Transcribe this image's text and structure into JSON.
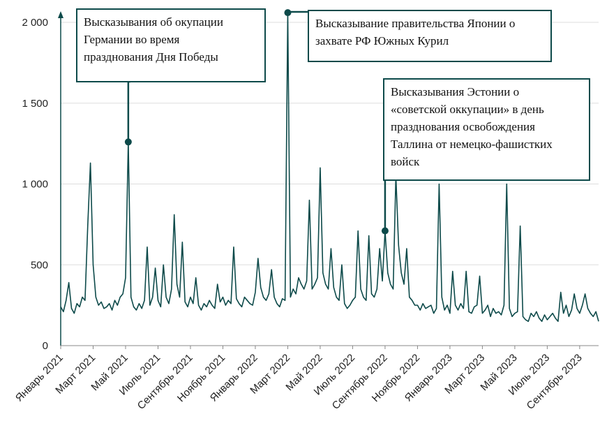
{
  "chart_data": {
    "type": "line",
    "color": "#0d4a4a",
    "xlim": [
      0,
      199
    ],
    "xticks": [
      {
        "value": 0,
        "label": "Январь 2021"
      },
      {
        "value": 12,
        "label": "Март 2021"
      },
      {
        "value": 24,
        "label": "Май 2021"
      },
      {
        "value": 36,
        "label": "Июль 2021"
      },
      {
        "value": 48,
        "label": "Сентябрь 2021"
      },
      {
        "value": 60,
        "label": "Ноябрь 2021"
      },
      {
        "value": 72,
        "label": "Январь 2022"
      },
      {
        "value": 84,
        "label": "Март 2022"
      },
      {
        "value": 96,
        "label": "Май 2022"
      },
      {
        "value": 108,
        "label": "Июль 2022"
      },
      {
        "value": 120,
        "label": "Сентябрь 2022"
      },
      {
        "value": 132,
        "label": "Ноябрь 2022"
      },
      {
        "value": 144,
        "label": "Январь 2023"
      },
      {
        "value": 156,
        "label": "Март 2023"
      },
      {
        "value": 168,
        "label": "Май 2023"
      },
      {
        "value": 180,
        "label": "Июль 2023"
      },
      {
        "value": 192,
        "label": "Сентябрь 2023"
      }
    ],
    "ylim": [
      0,
      2000
    ],
    "yticks": [
      {
        "value": 0,
        "label": "0"
      },
      {
        "value": 500,
        "label": "500"
      },
      {
        "value": 1000,
        "label": "1 000"
      },
      {
        "value": 1500,
        "label": "1 500"
      },
      {
        "value": 2000,
        "label": "2 000"
      }
    ],
    "values": [
      240,
      210,
      280,
      390,
      230,
      200,
      260,
      240,
      300,
      280,
      740,
      1130,
      500,
      300,
      250,
      270,
      230,
      240,
      260,
      220,
      280,
      250,
      300,
      320,
      420,
      1260,
      300,
      240,
      220,
      260,
      230,
      280,
      610,
      250,
      300,
      480,
      280,
      240,
      500,
      300,
      260,
      350,
      810,
      380,
      300,
      640,
      270,
      240,
      300,
      260,
      420,
      250,
      220,
      260,
      240,
      280,
      250,
      230,
      380,
      270,
      300,
      250,
      280,
      260,
      610,
      290,
      260,
      240,
      300,
      280,
      260,
      250,
      330,
      540,
      360,
      300,
      280,
      320,
      470,
      300,
      260,
      240,
      290,
      280,
      2060,
      300,
      350,
      320,
      420,
      380,
      350,
      400,
      900,
      350,
      380,
      420,
      1100,
      450,
      380,
      350,
      600,
      360,
      300,
      280,
      500,
      260,
      230,
      250,
      280,
      300,
      710,
      350,
      300,
      280,
      680,
      320,
      300,
      350,
      600,
      400,
      710,
      450,
      380,
      350,
      1050,
      620,
      450,
      380,
      600,
      300,
      280,
      250,
      250,
      220,
      260,
      230,
      240,
      250,
      200,
      230,
      1000,
      300,
      220,
      250,
      200,
      460,
      250,
      220,
      260,
      230,
      460,
      210,
      200,
      240,
      250,
      430,
      200,
      220,
      250,
      180,
      230,
      200,
      210,
      190,
      250,
      1000,
      230,
      180,
      200,
      210,
      740,
      180,
      160,
      150,
      200,
      180,
      210,
      170,
      150,
      190,
      160,
      180,
      200,
      170,
      150,
      330,
      200,
      250,
      180,
      220,
      320,
      230,
      200,
      250,
      320,
      230,
      200,
      180,
      210,
      150
    ],
    "annotations": [
      {
        "x": 25,
        "y": 1260,
        "text": [
          "Высказывания об окупации",
          "Германии во время",
          "празднования Дня Победы"
        ]
      },
      {
        "x": 84,
        "y": 2060,
        "text": [
          "Высказывание правительства Японии о",
          "захвате РФ  Южных Курил"
        ]
      },
      {
        "x": 120,
        "y": 710,
        "text": [
          "Высказывания Эстонии о",
          "«советской оккупации» в день",
          "празднования освобождения",
          "Таллина от немецко-фашистких",
          "войск"
        ]
      }
    ]
  }
}
